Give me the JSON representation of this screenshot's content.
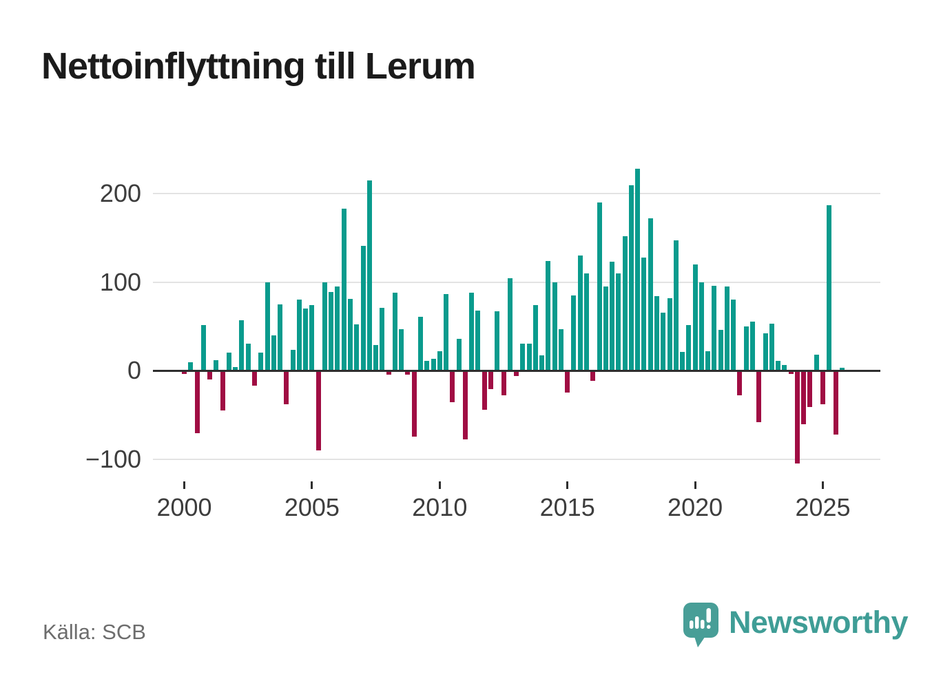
{
  "title": "Nettoinflyttning till Lerum",
  "source": "Källa: SCB",
  "logo": {
    "brand": "Newsworthy"
  },
  "colors": {
    "positive": "#0a9b8d",
    "negative": "#a00d43",
    "axis": "#2e2e2e",
    "gridline": "#e3e3e3",
    "axis_text": "#3d3d3d",
    "source_text": "#6d6d6d",
    "brand_teal": "#3f9d96"
  },
  "chart_data": {
    "type": "bar",
    "title": "Nettoinflyttning till Lerum",
    "frequency": "quarterly",
    "start_year": 2000,
    "start_quarter": 1,
    "end_year": 2025,
    "end_quarter": 4,
    "grid": "horizontal",
    "legend": "none",
    "ylim": [
      -120,
      240
    ],
    "x_tick_labels": [
      "2000",
      "2005",
      "2010",
      "2015",
      "2020",
      "2025"
    ],
    "y_ticks": [
      {
        "label": "200",
        "value": 200
      },
      {
        "label": "100",
        "value": 100
      },
      {
        "label": "0",
        "value": 0
      },
      {
        "label": "−100",
        "value": -100
      }
    ],
    "series": [
      {
        "name": "Nettoinflyttning",
        "values": [
          -4,
          9,
          -71,
          51,
          -10,
          12,
          -45,
          20,
          4,
          57,
          30,
          -17,
          20,
          100,
          40,
          75,
          -38,
          23,
          80,
          70,
          74,
          -90,
          100,
          89,
          95,
          183,
          81,
          52,
          141,
          215,
          29,
          71,
          -5,
          88,
          47,
          -5,
          -75,
          61,
          11,
          13,
          22,
          86,
          -36,
          36,
          -78,
          88,
          68,
          -44,
          -21,
          67,
          -28,
          104,
          -6,
          30,
          30,
          74,
          17,
          124,
          100,
          47,
          -25,
          85,
          130,
          110,
          -12,
          190,
          95,
          123,
          110,
          152,
          209,
          228,
          128,
          172,
          84,
          65,
          82,
          147,
          21,
          51,
          120,
          100,
          22,
          96,
          46,
          95,
          80,
          -28,
          50,
          55,
          -58,
          42,
          53,
          11,
          6,
          -4,
          -105,
          -61,
          -41,
          18,
          -38,
          187,
          -72,
          3
        ]
      }
    ]
  }
}
